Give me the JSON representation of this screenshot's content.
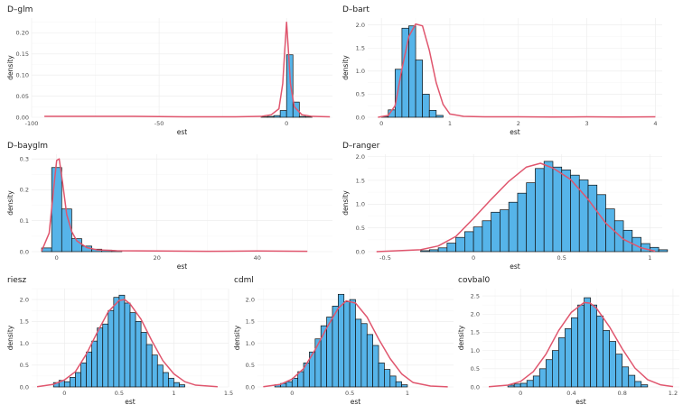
{
  "chart_data": [
    {
      "type": "histogram",
      "title": "D–glm",
      "xlabel": "est",
      "ylabel": "density",
      "xlim": [
        -100,
        18
      ],
      "ylim": [
        0,
        0.235
      ],
      "xticks": [
        -100,
        -50,
        0
      ],
      "yticks": [
        0.0,
        0.05,
        0.1,
        0.15,
        0.2
      ],
      "ytick_labels": [
        "0.00",
        "0.05",
        "0.10",
        "0.15",
        "0.20"
      ],
      "bin_width": 2.5,
      "bin_start": -10,
      "values": [
        0.001,
        0.002,
        0.004,
        0.016,
        0.148,
        0.036,
        0.002,
        0.001
      ],
      "density": [
        [
          -95,
          0.002
        ],
        [
          -80,
          0.002
        ],
        [
          -60,
          0.002
        ],
        [
          -40,
          0.001
        ],
        [
          -20,
          0.001
        ],
        [
          -10,
          0.002
        ],
        [
          -6,
          0.006
        ],
        [
          -3,
          0.02
        ],
        [
          -1.5,
          0.08
        ],
        [
          -0.7,
          0.16
        ],
        [
          0,
          0.225
        ],
        [
          0.7,
          0.16
        ],
        [
          1.5,
          0.08
        ],
        [
          3,
          0.025
        ],
        [
          6,
          0.006
        ],
        [
          10,
          0.002
        ],
        [
          17,
          0.001
        ]
      ]
    },
    {
      "type": "histogram",
      "title": "D–bart",
      "xlabel": "est",
      "ylabel": "density",
      "xlim": [
        -0.2,
        4.1
      ],
      "ylim": [
        0,
        2.15
      ],
      "xticks": [
        0,
        1,
        2,
        3,
        4
      ],
      "yticks": [
        0.0,
        0.5,
        1.0,
        1.5,
        2.0
      ],
      "ytick_labels": [
        "0.0",
        "0.5",
        "1.0",
        "1.5",
        "2.0"
      ],
      "bin_width": 0.1,
      "bin_start": 0.0,
      "values": [
        0.02,
        0.16,
        1.04,
        1.93,
        1.98,
        1.24,
        0.5,
        0.15,
        0.04
      ],
      "density": [
        [
          -0.05,
          0.0
        ],
        [
          0.1,
          0.04
        ],
        [
          0.2,
          0.25
        ],
        [
          0.3,
          1.05
        ],
        [
          0.4,
          1.75
        ],
        [
          0.5,
          2.02
        ],
        [
          0.6,
          1.98
        ],
        [
          0.7,
          1.45
        ],
        [
          0.8,
          0.75
        ],
        [
          0.9,
          0.28
        ],
        [
          1.0,
          0.07
        ],
        [
          1.2,
          0.02
        ],
        [
          1.5,
          0.01
        ],
        [
          2.0,
          0.01
        ],
        [
          2.5,
          0.005
        ],
        [
          3.0,
          0.01
        ],
        [
          3.5,
          0.005
        ],
        [
          4.0,
          0.01
        ]
      ]
    },
    {
      "type": "histogram",
      "title": "D–bayglm",
      "xlabel": "est",
      "ylabel": "density",
      "xlim": [
        -5,
        55
      ],
      "ylim": [
        0,
        0.315
      ],
      "xticks": [
        0,
        20,
        40
      ],
      "yticks": [
        0.0,
        0.1,
        0.2,
        0.3
      ],
      "ytick_labels": [
        "0.0",
        "0.1",
        "0.2",
        "0.3"
      ],
      "bin_width": 2,
      "bin_start": -3,
      "values": [
        0.012,
        0.272,
        0.138,
        0.042,
        0.018,
        0.008,
        0.005,
        0.003
      ],
      "density": [
        [
          -3,
          0.002
        ],
        [
          -1.5,
          0.06
        ],
        [
          -0.5,
          0.22
        ],
        [
          0,
          0.295
        ],
        [
          0.5,
          0.3
        ],
        [
          1.2,
          0.22
        ],
        [
          2,
          0.12
        ],
        [
          3,
          0.065
        ],
        [
          4,
          0.035
        ],
        [
          6,
          0.013
        ],
        [
          8,
          0.006
        ],
        [
          12,
          0.003
        ],
        [
          20,
          0.002
        ],
        [
          30,
          0.001
        ],
        [
          40,
          0.002
        ],
        [
          50,
          0.001
        ]
      ]
    },
    {
      "type": "histogram",
      "title": "D–ranger",
      "xlabel": "est",
      "ylabel": "density",
      "xlim": [
        -0.6,
        1.07
      ],
      "ylim": [
        0,
        2.05
      ],
      "xticks": [
        -0.5,
        0.0,
        0.5,
        1.0
      ],
      "yticks": [
        0.0,
        0.5,
        1.0,
        1.5,
        2.0
      ],
      "ytick_labels": [
        "0.0",
        "0.5",
        "1.0",
        "1.5",
        "2.0"
      ],
      "bin_width": 0.05,
      "bin_start": -0.3,
      "values": [
        0.02,
        0.04,
        0.08,
        0.18,
        0.3,
        0.42,
        0.52,
        0.65,
        0.83,
        0.88,
        1.04,
        1.23,
        1.45,
        1.75,
        1.9,
        1.78,
        1.72,
        1.61,
        1.51,
        1.4,
        1.2,
        0.9,
        0.65,
        0.45,
        0.3,
        0.17,
        0.09,
        0.04
      ],
      "density": [
        [
          -0.55,
          0.0
        ],
        [
          -0.3,
          0.04
        ],
        [
          -0.2,
          0.12
        ],
        [
          -0.1,
          0.32
        ],
        [
          0.0,
          0.7
        ],
        [
          0.1,
          1.1
        ],
        [
          0.2,
          1.48
        ],
        [
          0.3,
          1.78
        ],
        [
          0.38,
          1.86
        ],
        [
          0.45,
          1.76
        ],
        [
          0.55,
          1.52
        ],
        [
          0.65,
          1.1
        ],
        [
          0.75,
          0.6
        ],
        [
          0.85,
          0.26
        ],
        [
          0.95,
          0.08
        ],
        [
          1.03,
          0.01
        ]
      ]
    },
    {
      "type": "histogram",
      "title": "riesz",
      "xlabel": "est",
      "ylabel": "density",
      "xlim": [
        -0.3,
        1.5
      ],
      "ylim": [
        0,
        2.25
      ],
      "xticks": [
        0.0,
        0.5,
        1.0,
        1.5
      ],
      "yticks": [
        0.0,
        0.5,
        1.0,
        1.5,
        2.0
      ],
      "ytick_labels": [
        "0.0",
        "0.5",
        "1.0",
        "1.5",
        "2.0"
      ],
      "bin_width": 0.05,
      "bin_start": -0.1,
      "values": [
        0.1,
        0.15,
        0.12,
        0.22,
        0.33,
        0.55,
        0.8,
        1.05,
        1.35,
        1.44,
        1.75,
        2.05,
        2.1,
        1.92,
        1.7,
        1.5,
        1.25,
        0.97,
        0.73,
        0.5,
        0.33,
        0.2,
        0.1,
        0.05
      ],
      "density": [
        [
          -0.25,
          0.005
        ],
        [
          -0.1,
          0.06
        ],
        [
          0.0,
          0.16
        ],
        [
          0.1,
          0.35
        ],
        [
          0.2,
          0.75
        ],
        [
          0.3,
          1.25
        ],
        [
          0.4,
          1.72
        ],
        [
          0.5,
          1.98
        ],
        [
          0.55,
          2.0
        ],
        [
          0.6,
          1.9
        ],
        [
          0.7,
          1.55
        ],
        [
          0.8,
          1.05
        ],
        [
          0.9,
          0.6
        ],
        [
          1.0,
          0.3
        ],
        [
          1.1,
          0.12
        ],
        [
          1.2,
          0.04
        ],
        [
          1.4,
          0.005
        ]
      ]
    },
    {
      "type": "histogram",
      "title": "cdml",
      "xlabel": "est",
      "ylabel": "density",
      "xlim": [
        -0.3,
        1.4
      ],
      "ylim": [
        0,
        2.25
      ],
      "xticks": [
        0.0,
        0.5,
        1.0
      ],
      "yticks": [
        0.0,
        0.5,
        1.0,
        1.5,
        2.0
      ],
      "ytick_labels": [
        "0.0",
        "0.5",
        "1.0",
        "1.5",
        "2.0"
      ],
      "bin_width": 0.05,
      "bin_start": -0.15,
      "values": [
        0.05,
        0.08,
        0.12,
        0.2,
        0.35,
        0.55,
        0.8,
        1.1,
        1.4,
        1.6,
        1.85,
        2.12,
        1.95,
        2.0,
        1.55,
        1.45,
        1.2,
        0.95,
        0.55,
        0.4,
        0.25,
        0.12,
        0.05
      ],
      "density": [
        [
          -0.25,
          0.005
        ],
        [
          -0.1,
          0.06
        ],
        [
          0.0,
          0.18
        ],
        [
          0.1,
          0.42
        ],
        [
          0.2,
          0.85
        ],
        [
          0.3,
          1.35
        ],
        [
          0.4,
          1.8
        ],
        [
          0.47,
          1.97
        ],
        [
          0.55,
          1.92
        ],
        [
          0.65,
          1.6
        ],
        [
          0.75,
          1.1
        ],
        [
          0.85,
          0.65
        ],
        [
          0.95,
          0.3
        ],
        [
          1.05,
          0.1
        ],
        [
          1.2,
          0.02
        ],
        [
          1.35,
          0.002
        ]
      ]
    },
    {
      "type": "histogram",
      "title": "covbal0",
      "xlabel": "est",
      "ylabel": "density",
      "xlim": [
        -0.3,
        1.25
      ],
      "ylim": [
        0,
        2.7
      ],
      "xticks": [
        0.0,
        0.4,
        0.8,
        1.2
      ],
      "yticks": [
        0.0,
        0.5,
        1.0,
        1.5,
        2.0,
        2.5
      ],
      "ytick_labels": [
        "0.0",
        "0.5",
        "1.0",
        "1.5",
        "2.0",
        "2.5"
      ],
      "bin_width": 0.05,
      "bin_start": -0.1,
      "values": [
        0.05,
        0.08,
        0.1,
        0.18,
        0.3,
        0.5,
        0.75,
        1.0,
        1.35,
        1.6,
        1.9,
        2.25,
        2.45,
        2.25,
        1.95,
        1.55,
        1.25,
        0.9,
        0.55,
        0.32,
        0.15,
        0.06
      ],
      "density": [
        [
          -0.25,
          0.005
        ],
        [
          -0.1,
          0.05
        ],
        [
          0.0,
          0.15
        ],
        [
          0.1,
          0.42
        ],
        [
          0.2,
          0.9
        ],
        [
          0.3,
          1.55
        ],
        [
          0.4,
          2.05
        ],
        [
          0.5,
          2.32
        ],
        [
          0.55,
          2.3
        ],
        [
          0.6,
          2.15
        ],
        [
          0.7,
          1.65
        ],
        [
          0.8,
          1.05
        ],
        [
          0.9,
          0.52
        ],
        [
          1.0,
          0.2
        ],
        [
          1.1,
          0.06
        ],
        [
          1.2,
          0.01
        ]
      ]
    }
  ]
}
